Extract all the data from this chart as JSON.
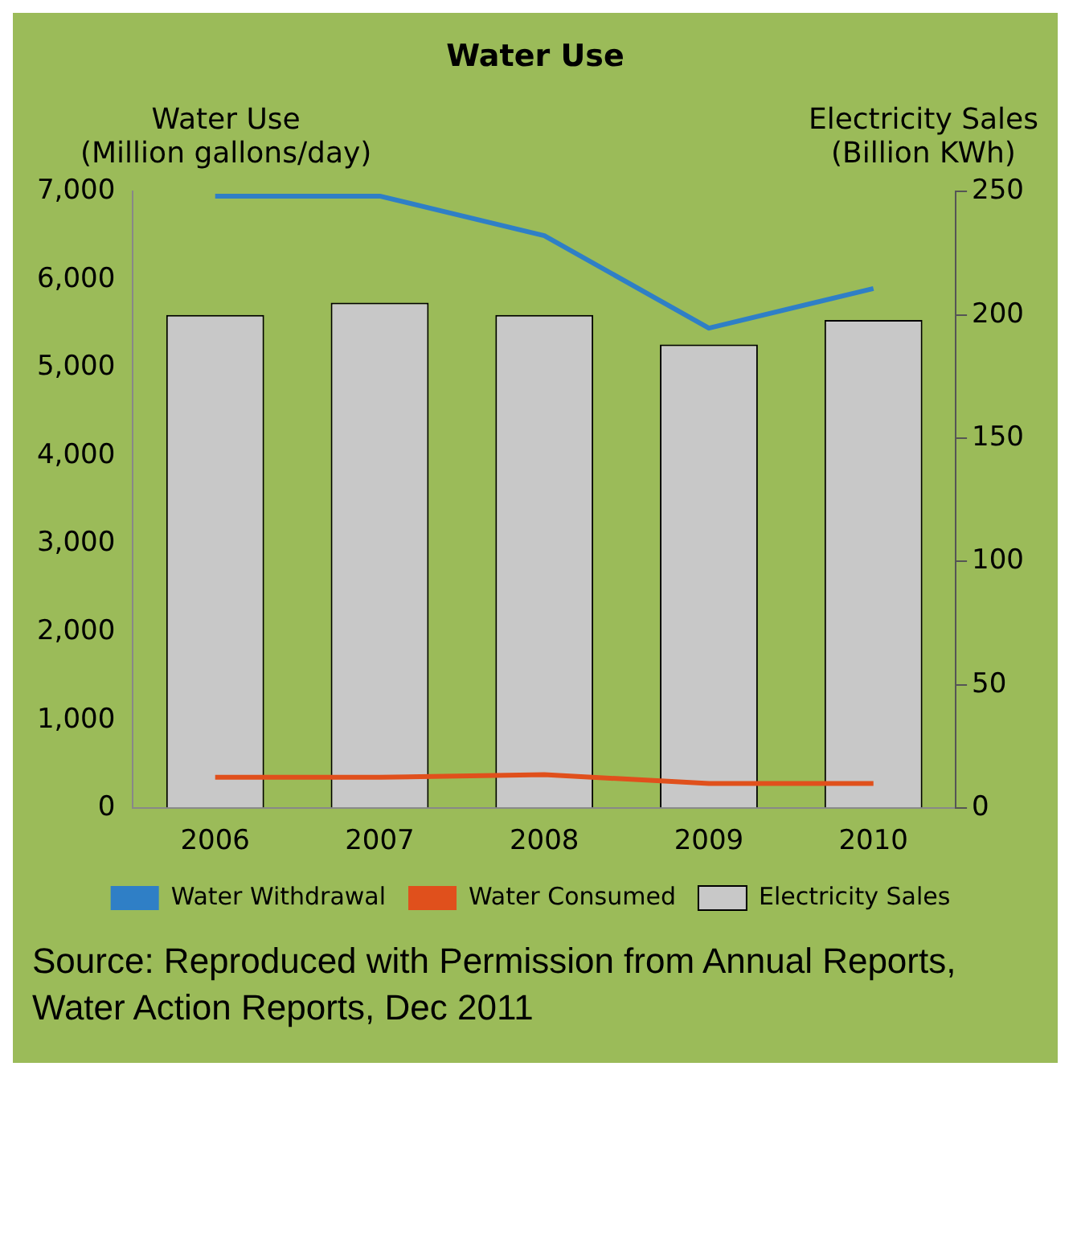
{
  "chart_data": {
    "type": "bar",
    "title": "Water Use",
    "ylabel": "Water Use\n(Million gallons/day)",
    "y2label": "Electricity Sales\n(Billion KWh)",
    "categories": [
      "2006",
      "2007",
      "2008",
      "2009",
      "2010"
    ],
    "series": [
      {
        "name": "Water Withdrawal",
        "type": "line",
        "color": "#2f7fc6",
        "values": [
          6950,
          6950,
          6500,
          5450,
          5900
        ]
      },
      {
        "name": "Water Consumed",
        "type": "line",
        "color": "#e0501c",
        "values": [
          350,
          350,
          380,
          280,
          280
        ]
      },
      {
        "name": "Electricity Sales",
        "axis": "y2",
        "color": "#c8c8c8",
        "values": [
          200,
          205,
          200,
          188,
          198
        ]
      }
    ],
    "ylim": [
      0,
      7000
    ],
    "yticks": [
      {
        "value": 0,
        "label": "0"
      },
      {
        "value": 1000,
        "label": "1,000"
      },
      {
        "value": 2000,
        "label": "2,000"
      },
      {
        "value": 3000,
        "label": "3,000"
      },
      {
        "value": 4000,
        "label": "4,000"
      },
      {
        "value": 5000,
        "label": "5,000"
      },
      {
        "value": 6000,
        "label": "6,000"
      },
      {
        "value": 7000,
        "label": "7,000"
      }
    ],
    "y2lim": [
      0,
      250
    ],
    "y2ticks": [
      0,
      50,
      100,
      150,
      200,
      250
    ],
    "legend": "bottom",
    "marker": "none",
    "annotations": [
      "Source: Reproduced with Permission from Annual Reports, Water Action Reports, Dec 2011"
    ]
  }
}
